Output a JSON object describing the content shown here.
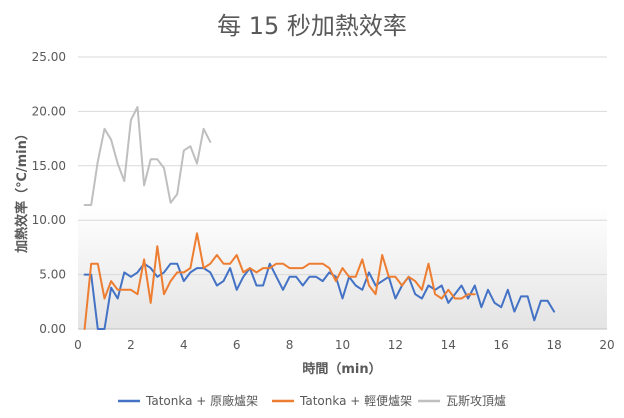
{
  "chart_data": {
    "type": "line",
    "title": "每 15 秒加熱效率",
    "xlabel": "時間（min）",
    "ylabel": "加熱效率（℃/min）",
    "xlim": [
      0,
      20
    ],
    "ylim": [
      0,
      25
    ],
    "x_ticks": [
      "0",
      "2",
      "4",
      "6",
      "8",
      "10",
      "12",
      "14",
      "16",
      "18",
      "20"
    ],
    "y_ticks": [
      "0.00",
      "5.00",
      "10.00",
      "15.00",
      "20.00",
      "25.00"
    ],
    "grid": true,
    "legend_position": "bottom",
    "series": [
      {
        "name": "Tatonka + 原廠爐架",
        "color": "#4472C4",
        "x": [
          0.25,
          0.5,
          0.75,
          1,
          1.25,
          1.5,
          1.75,
          2,
          2.25,
          2.5,
          2.75,
          3,
          3.25,
          3.5,
          3.75,
          4,
          4.25,
          4.5,
          4.75,
          5,
          5.25,
          5.5,
          5.75,
          6,
          6.25,
          6.5,
          6.75,
          7,
          7.25,
          7.5,
          7.75,
          8,
          8.25,
          8.5,
          8.75,
          9,
          9.25,
          9.5,
          9.75,
          10,
          10.25,
          10.5,
          10.75,
          11,
          11.25,
          11.5,
          11.75,
          12,
          12.25,
          12.5,
          12.75,
          13,
          13.25,
          13.5,
          13.75,
          14,
          14.25,
          14.5,
          14.75,
          15,
          15.25,
          15.5,
          15.75,
          16,
          16.25,
          16.5,
          16.75,
          17,
          17.25,
          17.5,
          17.75,
          18
        ],
        "values": [
          5.0,
          5.0,
          0,
          0,
          3.8,
          2.8,
          5.2,
          4.8,
          5.2,
          6.0,
          5.6,
          4.8,
          5.2,
          6.0,
          6.0,
          4.4,
          5.2,
          5.6,
          5.6,
          5.2,
          4.0,
          4.4,
          5.6,
          3.6,
          4.8,
          5.6,
          4.0,
          4.0,
          6.0,
          4.8,
          3.6,
          4.8,
          4.8,
          4.0,
          4.8,
          4.8,
          4.4,
          5.2,
          4.8,
          2.8,
          4.8,
          4.0,
          3.6,
          5.2,
          4.0,
          4.4,
          4.8,
          2.8,
          4.0,
          4.8,
          3.2,
          2.8,
          4.0,
          3.6,
          4.0,
          2.4,
          3.2,
          4.0,
          2.8,
          4.0,
          2.0,
          3.6,
          2.4,
          2.0,
          3.6,
          1.6,
          3.0,
          3.0,
          0.8,
          2.6,
          2.6,
          1.6
        ]
      },
      {
        "name": "Tatonka + 輕便爐架",
        "color": "#ED7D31",
        "x": [
          0.25,
          0.5,
          0.75,
          1,
          1.25,
          1.5,
          1.75,
          2,
          2.25,
          2.5,
          2.75,
          3,
          3.25,
          3.5,
          3.75,
          4,
          4.25,
          4.5,
          4.75,
          5,
          5.25,
          5.5,
          5.75,
          6,
          6.25,
          6.5,
          6.75,
          7,
          7.25,
          7.5,
          7.75,
          8,
          8.25,
          8.5,
          8.75,
          9,
          9.25,
          9.5,
          9.75,
          10,
          10.25,
          10.5,
          10.75,
          11,
          11.25,
          11.5,
          11.75,
          12,
          12.25,
          12.5,
          12.75,
          13,
          13.25,
          13.5,
          13.75,
          14,
          14.25,
          14.5,
          14.75,
          15
        ],
        "values": [
          0,
          6.0,
          6.0,
          2.8,
          4.4,
          3.6,
          3.6,
          3.6,
          3.2,
          6.4,
          2.4,
          7.6,
          3.2,
          4.4,
          5.2,
          5.2,
          5.6,
          8.8,
          5.6,
          6.0,
          6.8,
          6.0,
          6.0,
          6.8,
          5.2,
          5.6,
          5.2,
          5.6,
          5.6,
          6.0,
          6.0,
          5.6,
          5.6,
          5.6,
          6.0,
          6.0,
          6.0,
          5.6,
          4.4,
          5.6,
          4.8,
          4.8,
          6.4,
          4.0,
          3.2,
          6.8,
          4.8,
          4.8,
          4.0,
          4.8,
          4.4,
          3.6,
          6.0,
          3.2,
          2.8,
          3.6,
          2.8,
          2.8,
          3.2,
          3.2
        ]
      },
      {
        "name": "瓦斯攻頂爐",
        "color": "#BFBFBF",
        "x": [
          0.25,
          0.5,
          0.75,
          1,
          1.25,
          1.5,
          1.75,
          2,
          2.25,
          2.5,
          2.75,
          3,
          3.25,
          3.5,
          3.75,
          4,
          4.25,
          4.5,
          4.75,
          5
        ],
        "values": [
          11.4,
          11.4,
          15.4,
          18.4,
          17.4,
          15.2,
          13.6,
          19.2,
          20.4,
          13.2,
          15.6,
          15.6,
          14.8,
          11.6,
          12.4,
          16.4,
          16.8,
          15.2,
          18.4,
          17.2
        ]
      }
    ]
  }
}
